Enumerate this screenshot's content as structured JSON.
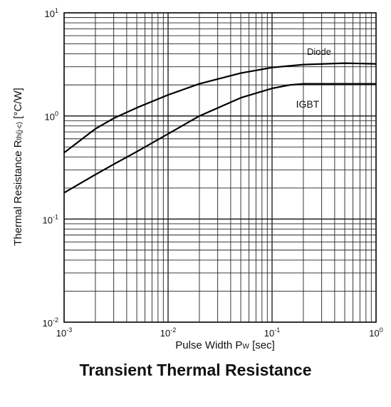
{
  "figure": {
    "title": "Transient Thermal Resistance"
  },
  "chart_data": {
    "type": "line",
    "x_scale": "log",
    "y_scale": "log",
    "xlim": [
      0.001,
      1
    ],
    "ylim": [
      0.01,
      10
    ],
    "xlabel_main": "Pulse Width P",
    "xlabel_sub": "W",
    "xlabel_unit": " [sec]",
    "ylabel_main": "Thermal Resistance R",
    "ylabel_sub": "th(j-c)",
    "ylabel_unit": " [°C/W]",
    "x_ticks": [
      {
        "value": 0.001,
        "base": "10",
        "exp": "-3"
      },
      {
        "value": 0.01,
        "base": "10",
        "exp": "-2"
      },
      {
        "value": 0.1,
        "base": "10",
        "exp": "-1"
      },
      {
        "value": 1,
        "base": "10",
        "exp": "0"
      }
    ],
    "y_ticks": [
      {
        "value": 0.01,
        "base": "10",
        "exp": "-2"
      },
      {
        "value": 0.1,
        "base": "10",
        "exp": "-1"
      },
      {
        "value": 1,
        "base": "10",
        "exp": "0"
      },
      {
        "value": 10,
        "base": "10",
        "exp": "1"
      }
    ],
    "grid": true,
    "series": [
      {
        "name": "Diode",
        "x": [
          0.001,
          0.002,
          0.003,
          0.005,
          0.01,
          0.02,
          0.05,
          0.1,
          0.2,
          0.5,
          1
        ],
        "y": [
          0.44,
          0.75,
          0.95,
          1.2,
          1.6,
          2.05,
          2.6,
          2.95,
          3.15,
          3.25,
          3.2
        ]
      },
      {
        "name": "IGBT",
        "x": [
          0.001,
          0.002,
          0.003,
          0.005,
          0.01,
          0.02,
          0.05,
          0.1,
          0.15,
          0.2,
          0.5,
          1
        ],
        "y": [
          0.18,
          0.27,
          0.34,
          0.45,
          0.67,
          1.0,
          1.5,
          1.85,
          2.0,
          2.05,
          2.05,
          2.05
        ]
      }
    ]
  }
}
